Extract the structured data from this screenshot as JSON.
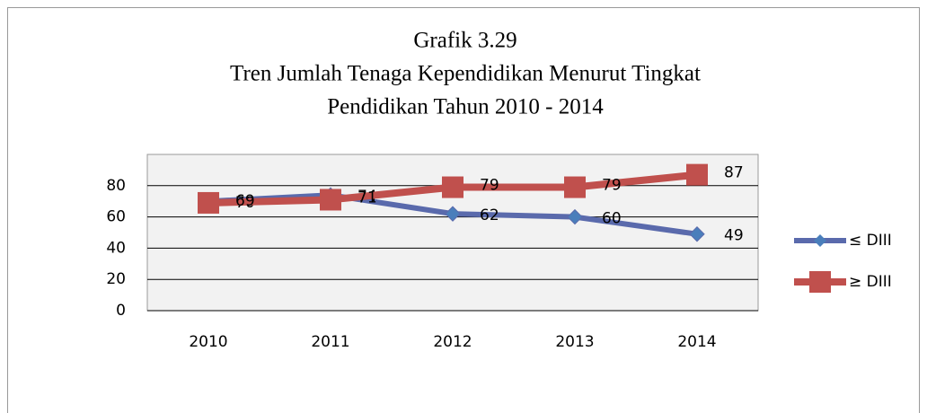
{
  "chart_data": {
    "type": "line",
    "title": [
      "Grafik 3.29",
      "Tren Jumlah Tenaga Kependidikan Menurut Tingkat",
      "Pendidikan Tahun 2010 - 2014"
    ],
    "categories": [
      "2010",
      "2011",
      "2012",
      "2013",
      "2014"
    ],
    "series": [
      {
        "name": "≤ DIII",
        "color": "#5a6aac",
        "marker": "diamond",
        "values": [
          70,
          74,
          62,
          60,
          49
        ]
      },
      {
        "name": "≥ DIII",
        "color": "#c0504d",
        "marker": "square",
        "values": [
          69,
          71,
          79,
          79,
          87
        ]
      }
    ],
    "ylim": [
      0,
      100
    ],
    "yticks": [
      0,
      20,
      40,
      60,
      80
    ],
    "grid": true,
    "legend": "right"
  }
}
